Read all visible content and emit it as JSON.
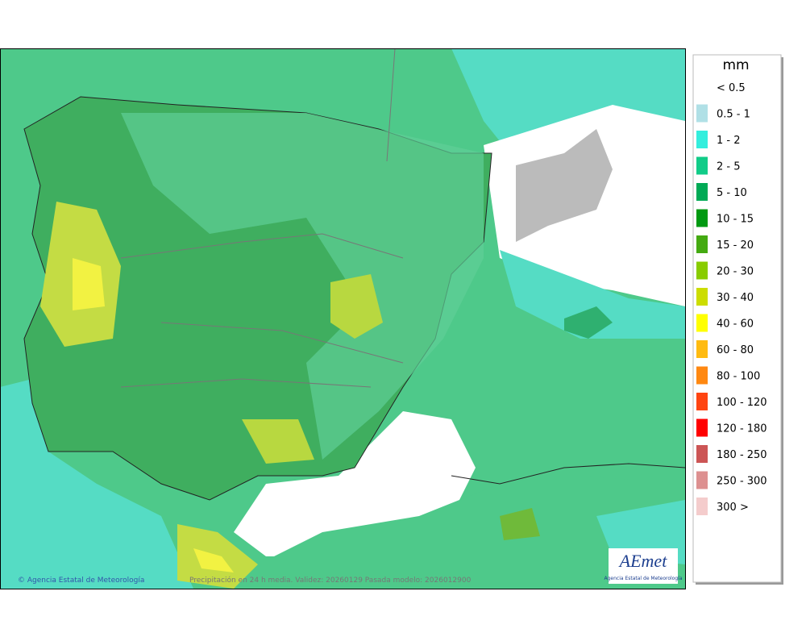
{
  "legend": {
    "title": "mm",
    "items": [
      {
        "label": "< 0.5",
        "color": "#ffffff"
      },
      {
        "label": "0.5 - 1",
        "color": "#b0e0e6"
      },
      {
        "label": "1 - 2",
        "color": "#33eedd"
      },
      {
        "label": "2 - 5",
        "color": "#11cc88"
      },
      {
        "label": "5 - 10",
        "color": "#00aa55"
      },
      {
        "label": "10 - 15",
        "color": "#009911"
      },
      {
        "label": "15 - 20",
        "color": "#44aa11"
      },
      {
        "label": "20 - 30",
        "color": "#88cc00"
      },
      {
        "label": "30 - 40",
        "color": "#ccdd00"
      },
      {
        "label": "40 - 60",
        "color": "#ffff00"
      },
      {
        "label": "60 - 80",
        "color": "#ffbb11"
      },
      {
        "label": "80 - 100",
        "color": "#ff8811"
      },
      {
        "label": "100 - 120",
        "color": "#ff4411"
      },
      {
        "label": "120 - 180",
        "color": "#ff0000"
      },
      {
        "label": "180 - 250",
        "color": "#cc5555"
      },
      {
        "label": "250 - 300",
        "color": "#dd9090"
      },
      {
        "label": "300 >",
        "color": "#f4cccc"
      }
    ]
  },
  "footer": {
    "copyright": "© Agencia Estatal de Meteorología",
    "caption": "Precipitación en 24 h media. Validez: 20260129 Pasada modelo: 2026012900"
  },
  "logo": {
    "text": "AEmet",
    "subtitle": "Agencia Estatal de Meteorología"
  }
}
